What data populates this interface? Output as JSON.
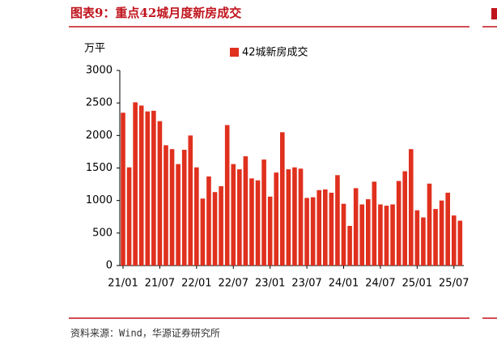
{
  "header": {
    "title": "图表9：重点42城月度新房成交"
  },
  "chart_data": {
    "type": "bar",
    "y_unit": "万平",
    "categories": [
      "21/01",
      null,
      null,
      null,
      null,
      null,
      "21/07",
      null,
      null,
      null,
      null,
      null,
      "22/01",
      null,
      null,
      null,
      null,
      null,
      "22/07",
      null,
      null,
      null,
      null,
      null,
      "23/01",
      null,
      null,
      null,
      null,
      null,
      "23/07",
      null,
      null,
      null,
      null,
      null,
      "24/01",
      null,
      null,
      null,
      null,
      null,
      "24/07",
      null,
      null,
      null,
      null,
      null,
      "25/01",
      null,
      null,
      null,
      null,
      null,
      "25/07",
      null
    ],
    "series": [
      {
        "name": "42城新房成交",
        "color": "#e0301e",
        "values": [
          2350,
          1510,
          2510,
          2460,
          2370,
          2380,
          2220,
          1850,
          1790,
          1560,
          1780,
          2000,
          1510,
          1030,
          1370,
          1130,
          1220,
          2160,
          1560,
          1480,
          1680,
          1340,
          1310,
          1630,
          1060,
          1430,
          2050,
          1480,
          1510,
          1490,
          1040,
          1050,
          1160,
          1170,
          1120,
          1390,
          950,
          610,
          1190,
          940,
          1020,
          1290,
          940,
          920,
          940,
          1300,
          1450,
          1790,
          850,
          740,
          1260,
          870,
          1000,
          1120,
          770,
          690
        ]
      }
    ],
    "ylim": [
      0,
      3000
    ],
    "yticks": [
      0,
      500,
      1000,
      1500,
      2000,
      2500,
      3000
    ],
    "grid": false,
    "legend": "top"
  },
  "source": "资料来源：Wind，华源证券研究所"
}
